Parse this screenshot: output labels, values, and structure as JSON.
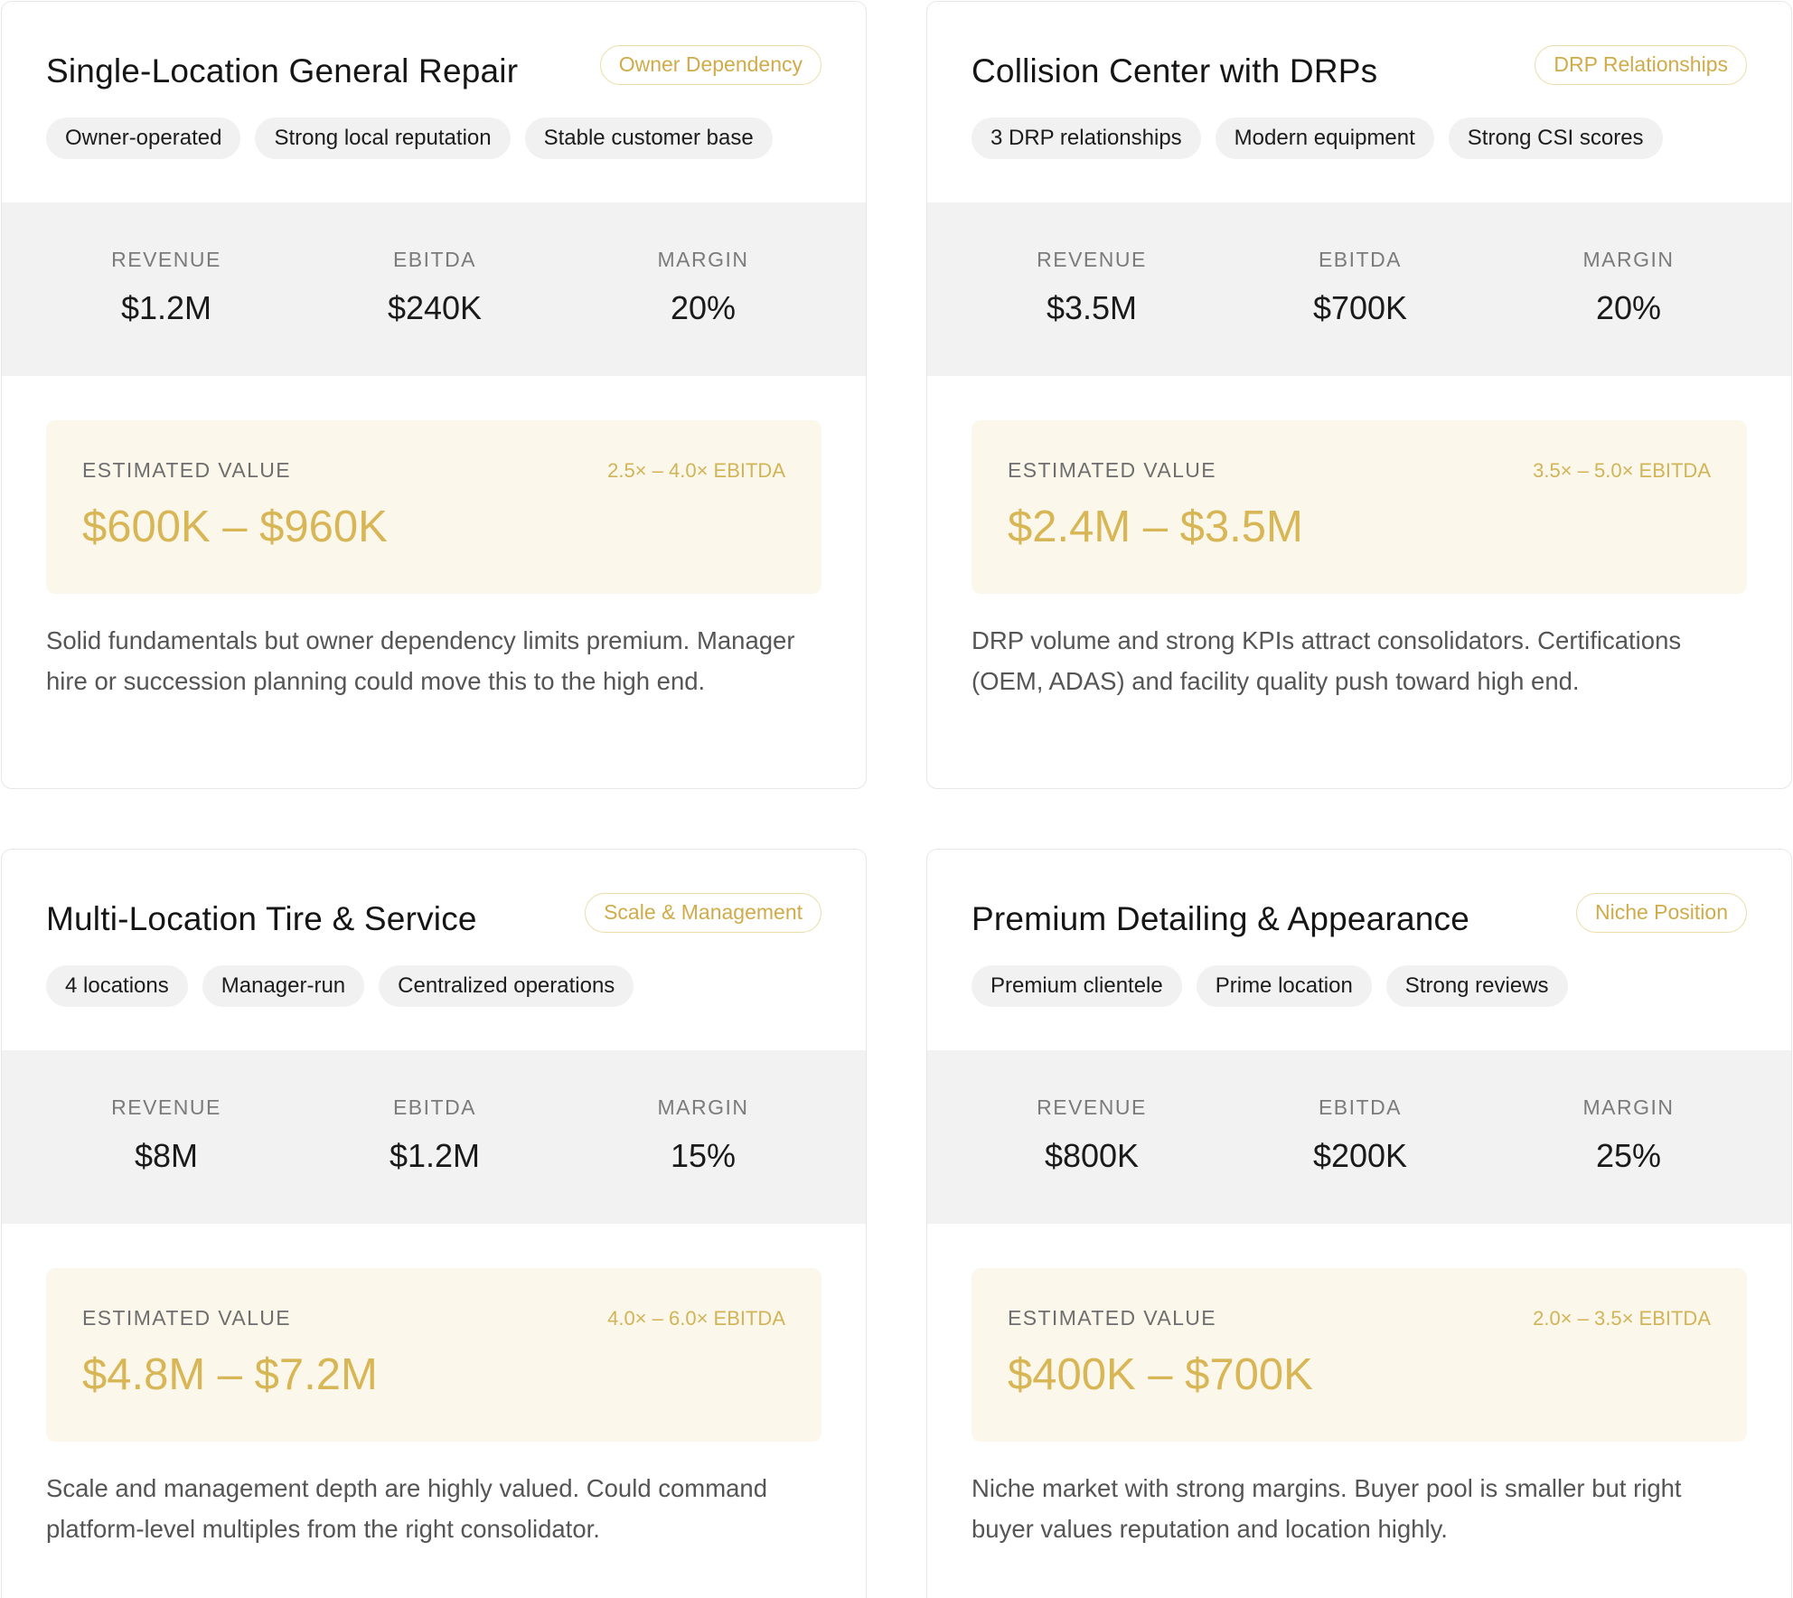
{
  "cards": [
    {
      "title": "Single-Location General Repair",
      "badge": "Owner Dependency",
      "tags": [
        "Owner-operated",
        "Strong local reputation",
        "Stable customer base"
      ],
      "metrics": {
        "revenue_label": "REVENUE",
        "revenue": "$1.2M",
        "ebitda_label": "EBITDA",
        "ebitda": "$240K",
        "margin_label": "MARGIN",
        "margin": "20%"
      },
      "estimate": {
        "label": "ESTIMATED VALUE",
        "multiple": "2.5× – 4.0× EBITDA",
        "value": "$600K – $960K"
      },
      "description": "Solid fundamentals but owner dependency limits premium. Manager hire or succession planning could move this to the high end."
    },
    {
      "title": "Collision Center with DRPs",
      "badge": "DRP Relationships",
      "tags": [
        "3 DRP relationships",
        "Modern equipment",
        "Strong CSI scores"
      ],
      "metrics": {
        "revenue_label": "REVENUE",
        "revenue": "$3.5M",
        "ebitda_label": "EBITDA",
        "ebitda": "$700K",
        "margin_label": "MARGIN",
        "margin": "20%"
      },
      "estimate": {
        "label": "ESTIMATED VALUE",
        "multiple": "3.5× – 5.0× EBITDA",
        "value": "$2.4M – $3.5M"
      },
      "description": "DRP volume and strong KPIs attract consolidators. Certifications (OEM, ADAS) and facility quality push toward high end."
    },
    {
      "title": "Multi-Location Tire & Service",
      "badge": "Scale & Management",
      "tags": [
        "4 locations",
        "Manager-run",
        "Centralized operations"
      ],
      "metrics": {
        "revenue_label": "REVENUE",
        "revenue": "$8M",
        "ebitda_label": "EBITDA",
        "ebitda": "$1.2M",
        "margin_label": "MARGIN",
        "margin": "15%"
      },
      "estimate": {
        "label": "ESTIMATED VALUE",
        "multiple": "4.0× – 6.0× EBITDA",
        "value": "$4.8M – $7.2M"
      },
      "description": "Scale and management depth are highly valued. Could command platform-level multiples from the right consolidator."
    },
    {
      "title": "Premium Detailing & Appearance",
      "badge": "Niche Position",
      "tags": [
        "Premium clientele",
        "Prime location",
        "Strong reviews"
      ],
      "metrics": {
        "revenue_label": "REVENUE",
        "revenue": "$800K",
        "ebitda_label": "EBITDA",
        "ebitda": "$200K",
        "margin_label": "MARGIN",
        "margin": "25%"
      },
      "estimate": {
        "label": "ESTIMATED VALUE",
        "multiple": "2.0× – 3.5× EBITDA",
        "value": "$400K – $700K"
      },
      "description": "Niche market with strong margins. Buyer pool is smaller but right buyer values reputation and location highly."
    }
  ],
  "colors": {
    "accent_gold": "#d8b656",
    "estimate_bg": "#fbf7ea",
    "metrics_bg": "#f1f2f1",
    "tag_bg": "#f0f1f0",
    "badge_border": "#ecdca8"
  }
}
